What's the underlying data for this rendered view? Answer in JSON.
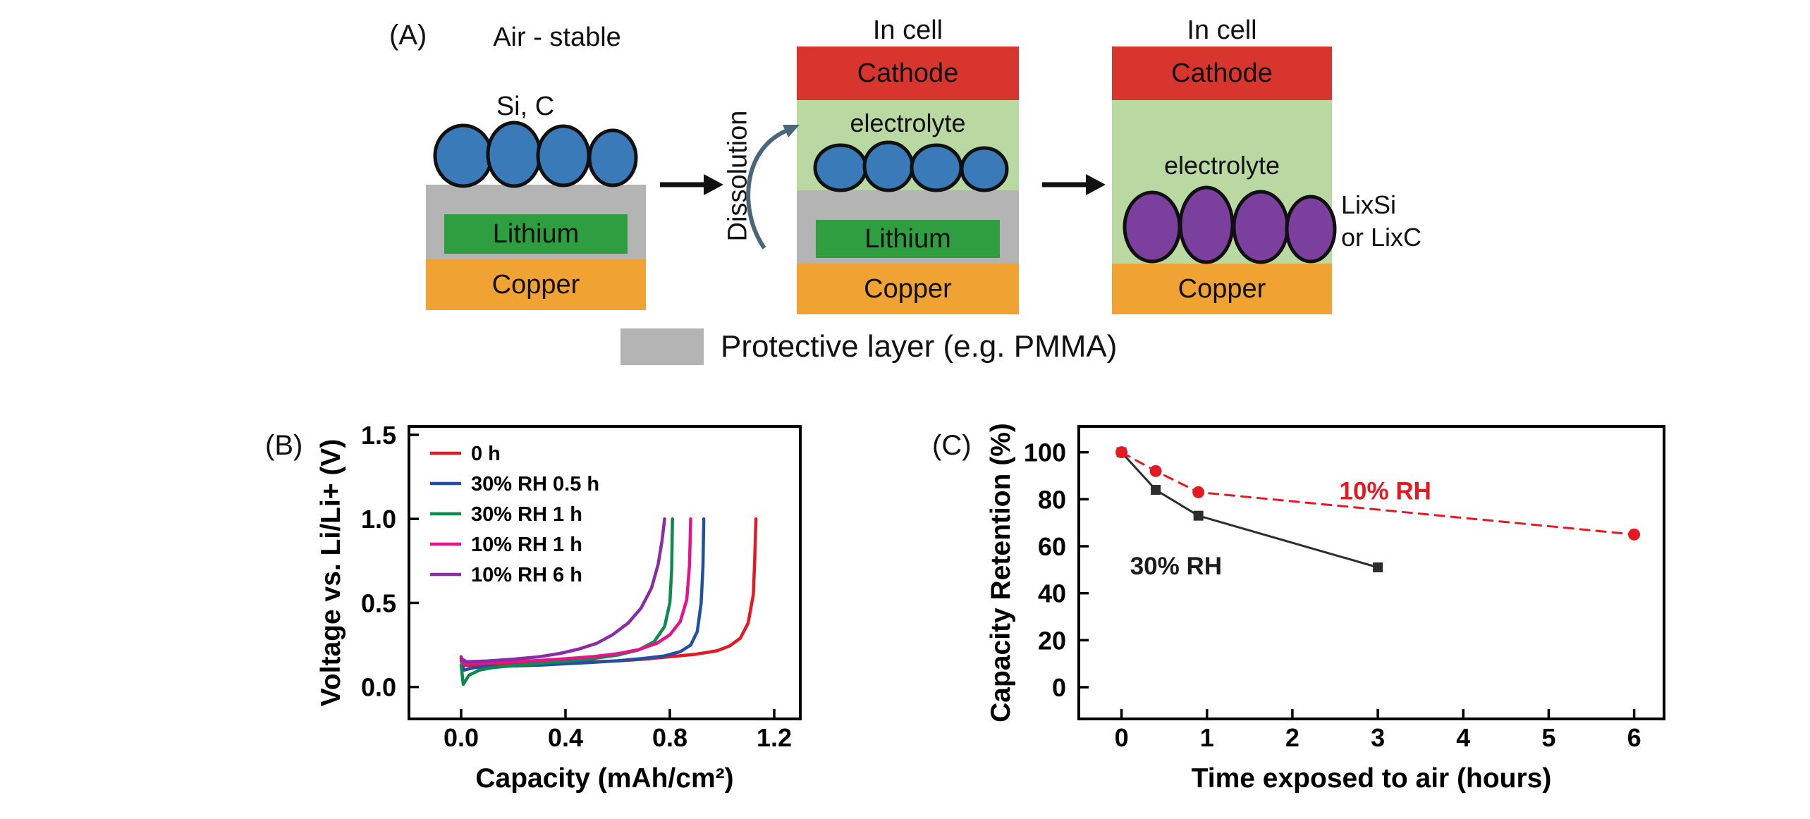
{
  "panel_a": {
    "label": "(A)",
    "air_stable": {
      "title": "Air - stable",
      "particles_label": "Si, C",
      "lithium": "Lithium",
      "copper": "Copper"
    },
    "dissolution_label": "Dissolution",
    "in_cell_1": {
      "title": "In cell",
      "cathode": "Cathode",
      "electrolyte": "electrolyte",
      "lithium": "Lithium",
      "copper": "Copper"
    },
    "in_cell_2": {
      "title": "In cell",
      "cathode": "Cathode",
      "electrolyte": "electrolyte",
      "copper": "Copper",
      "product_line1": "LixSi",
      "product_line2": "or LixC"
    },
    "legend_label": "Protective layer (e.g. PMMA)",
    "colors": {
      "cathode": "#d8352f",
      "electrolyte": "#b9d8a2",
      "lithium": "#2f9e41",
      "copper": "#f0a232",
      "protective": "#b4b4b4",
      "si_c_particle": "#3a7ab8",
      "lix_particle": "#7b3f9e",
      "particle_outline": "#101010"
    }
  },
  "panel_b_label": "(B)",
  "panel_c_label": "(C)",
  "chart_data": [
    {
      "type": "line",
      "panel": "B",
      "xlabel": "Capacity (mAh/cm²)",
      "ylabel": "Voltage vs. Li/Li+ (V)",
      "xlim": [
        -0.2,
        1.3
      ],
      "ylim": [
        -0.19,
        1.55
      ],
      "xticks": [
        0.0,
        0.4,
        0.8,
        1.2
      ],
      "xtick_labels": [
        "0.0",
        "0.4",
        "0.8",
        "1.2"
      ],
      "yticks": [
        0.0,
        0.5,
        1.0,
        1.5
      ],
      "ytick_labels": [
        "0.0",
        "0.5",
        "1.0",
        "1.5"
      ],
      "grid": false,
      "legend_position": "top-left-inside",
      "series": [
        {
          "name": "0 h",
          "color": "#e41a23",
          "width": 4.5,
          "points": [
            [
              0,
              0.18
            ],
            [
              0.01,
              0.13
            ],
            [
              0.05,
              0.125
            ],
            [
              0.1,
              0.13
            ],
            [
              0.2,
              0.135
            ],
            [
              0.3,
              0.14
            ],
            [
              0.4,
              0.145
            ],
            [
              0.5,
              0.15
            ],
            [
              0.6,
              0.155
            ],
            [
              0.7,
              0.165
            ],
            [
              0.8,
              0.18
            ],
            [
              0.9,
              0.195
            ],
            [
              0.98,
              0.215
            ],
            [
              1.03,
              0.245
            ],
            [
              1.07,
              0.29
            ],
            [
              1.1,
              0.38
            ],
            [
              1.12,
              0.55
            ],
            [
              1.125,
              0.75
            ],
            [
              1.13,
              1.0
            ]
          ]
        },
        {
          "name": "30% RH 0.5 h",
          "color": "#2150a3",
          "width": 4.5,
          "points": [
            [
              0,
              0.16
            ],
            [
              0.01,
              0.1
            ],
            [
              0.05,
              0.115
            ],
            [
              0.1,
              0.12
            ],
            [
              0.2,
              0.125
            ],
            [
              0.3,
              0.13
            ],
            [
              0.4,
              0.138
            ],
            [
              0.5,
              0.146
            ],
            [
              0.6,
              0.156
            ],
            [
              0.7,
              0.17
            ],
            [
              0.78,
              0.185
            ],
            [
              0.84,
              0.21
            ],
            [
              0.88,
              0.25
            ],
            [
              0.905,
              0.33
            ],
            [
              0.92,
              0.5
            ],
            [
              0.927,
              0.72
            ],
            [
              0.93,
              1.0
            ]
          ]
        },
        {
          "name": "30% RH 1 h",
          "color": "#0e8a50",
          "width": 4.5,
          "points": [
            [
              0,
              0.13
            ],
            [
              0.008,
              0.015
            ],
            [
              0.03,
              0.07
            ],
            [
              0.07,
              0.1
            ],
            [
              0.12,
              0.115
            ],
            [
              0.2,
              0.127
            ],
            [
              0.3,
              0.14
            ],
            [
              0.4,
              0.152
            ],
            [
              0.5,
              0.168
            ],
            [
              0.6,
              0.19
            ],
            [
              0.68,
              0.22
            ],
            [
              0.74,
              0.27
            ],
            [
              0.78,
              0.36
            ],
            [
              0.8,
              0.5
            ],
            [
              0.807,
              0.7
            ],
            [
              0.81,
              1.0
            ]
          ]
        },
        {
          "name": "10% RH 1 h",
          "color": "#e5148c",
          "width": 4.5,
          "points": [
            [
              0,
              0.17
            ],
            [
              0.01,
              0.135
            ],
            [
              0.05,
              0.14
            ],
            [
              0.1,
              0.143
            ],
            [
              0.2,
              0.15
            ],
            [
              0.3,
              0.158
            ],
            [
              0.4,
              0.168
            ],
            [
              0.5,
              0.18
            ],
            [
              0.6,
              0.198
            ],
            [
              0.68,
              0.222
            ],
            [
              0.75,
              0.26
            ],
            [
              0.8,
              0.31
            ],
            [
              0.84,
              0.39
            ],
            [
              0.865,
              0.52
            ],
            [
              0.875,
              0.72
            ],
            [
              0.88,
              1.0
            ]
          ]
        },
        {
          "name": "10% RH 6 h",
          "color": "#8a2ca5",
          "width": 4.5,
          "points": [
            [
              0,
              0.17
            ],
            [
              0.02,
              0.15
            ],
            [
              0.1,
              0.155
            ],
            [
              0.2,
              0.165
            ],
            [
              0.3,
              0.18
            ],
            [
              0.38,
              0.2
            ],
            [
              0.45,
              0.225
            ],
            [
              0.52,
              0.26
            ],
            [
              0.58,
              0.31
            ],
            [
              0.64,
              0.38
            ],
            [
              0.69,
              0.47
            ],
            [
              0.73,
              0.59
            ],
            [
              0.755,
              0.73
            ],
            [
              0.77,
              0.87
            ],
            [
              0.78,
              1.0
            ]
          ]
        }
      ]
    },
    {
      "type": "scatter",
      "panel": "C",
      "xlabel": "Time exposed to air (hours)",
      "ylabel": "Capacity Retention (%)",
      "xlim": [
        -0.5,
        6.35
      ],
      "ylim": [
        -13.5,
        111
      ],
      "xticks": [
        0,
        1,
        2,
        3,
        4,
        5,
        6
      ],
      "xtick_labels": [
        "0",
        "1",
        "2",
        "3",
        "4",
        "5",
        "6"
      ],
      "yticks": [
        0,
        20,
        40,
        60,
        80,
        100
      ],
      "ytick_labels": [
        "0",
        "20",
        "40",
        "60",
        "80",
        "100"
      ],
      "grid": false,
      "series": [
        {
          "name": "30% RH",
          "color": "#2d2d2d",
          "width": 3,
          "marker": "square",
          "marker_size": 14,
          "points": [
            [
              0,
              100
            ],
            [
              0.4,
              84
            ],
            [
              0.9,
              73
            ],
            [
              3,
              51
            ]
          ]
        },
        {
          "name": "10% RH",
          "color": "#e41a23",
          "width": 3,
          "dash": "13 10",
          "marker": "circle",
          "marker_size": 8.5,
          "points": [
            [
              0,
              100
            ],
            [
              0.4,
              92
            ],
            [
              0.9,
              83
            ],
            [
              6,
              65
            ]
          ]
        }
      ],
      "annotations": [
        {
          "text": "10% RH",
          "x": 2.55,
          "y": 80,
          "color": "#e41a23"
        },
        {
          "text": "30% RH",
          "x": 0.1,
          "y": 48,
          "color": "#1a1a1a"
        }
      ]
    }
  ]
}
